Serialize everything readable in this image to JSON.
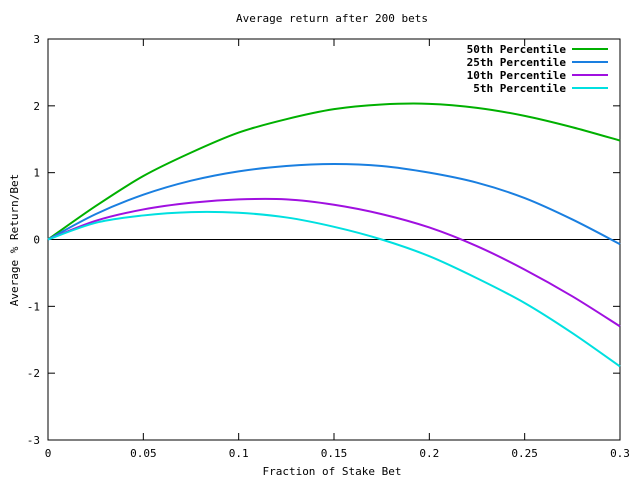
{
  "chart_data": {
    "type": "line",
    "title": "Average return after 200 bets",
    "xlabel": "Fraction of Stake Bet",
    "ylabel": "Average % Return/Bet",
    "xlim": [
      0,
      0.3
    ],
    "ylim": [
      -3,
      3
    ],
    "x_ticks": [
      0,
      0.05,
      0.1,
      0.15,
      0.2,
      0.25,
      0.3
    ],
    "x_tick_labels": [
      "0",
      "0.05",
      "0.1",
      "0.15",
      "0.2",
      "0.25",
      "0.3"
    ],
    "y_ticks": [
      -3,
      -2,
      -1,
      0,
      1,
      2,
      3
    ],
    "y_tick_labels": [
      "-3",
      "-2",
      "-1",
      "0",
      "1",
      "2",
      "3"
    ],
    "zero_line": true,
    "grid": false,
    "legend_position": "top-right",
    "x": [
      0,
      0.025,
      0.05,
      0.075,
      0.1,
      0.125,
      0.15,
      0.175,
      0.2,
      0.225,
      0.25,
      0.275,
      0.3
    ],
    "series": [
      {
        "name": "50th Percentile",
        "color": "#00b000",
        "values": [
          0.0,
          0.5,
          0.95,
          1.3,
          1.6,
          1.8,
          1.95,
          2.02,
          2.03,
          1.97,
          1.85,
          1.68,
          1.48
        ]
      },
      {
        "name": "25th Percentile",
        "color": "#1a7fe0",
        "values": [
          0.0,
          0.38,
          0.67,
          0.88,
          1.02,
          1.1,
          1.13,
          1.1,
          1.0,
          0.85,
          0.62,
          0.3,
          -0.07
        ]
      },
      {
        "name": "10th Percentile",
        "color": "#a010e0",
        "values": [
          0.0,
          0.28,
          0.45,
          0.55,
          0.6,
          0.6,
          0.52,
          0.38,
          0.18,
          -0.1,
          -0.45,
          -0.85,
          -1.3
        ]
      },
      {
        "name": "5th Percentile",
        "color": "#00e0e0",
        "values": [
          0.0,
          0.25,
          0.36,
          0.41,
          0.4,
          0.33,
          0.19,
          0.0,
          -0.25,
          -0.58,
          -0.95,
          -1.4,
          -1.9
        ]
      }
    ]
  }
}
